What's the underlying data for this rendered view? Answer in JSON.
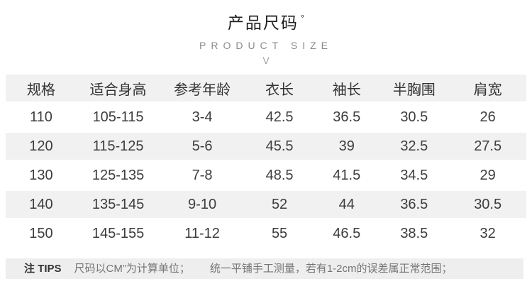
{
  "header": {
    "title": "产品尺码",
    "degree_mark": "°",
    "subtitle": "PRODUCT SIZE",
    "chevron": "V"
  },
  "table": {
    "columns": [
      "规格",
      "适合身高",
      "参考年龄",
      "衣长",
      "袖长",
      "半胸围",
      "肩宽"
    ],
    "rows": [
      [
        "110",
        "105-115",
        "3-4",
        "42.5",
        "36.5",
        "30.5",
        "26"
      ],
      [
        "120",
        "115-125",
        "5-6",
        "45.5",
        "39",
        "32.5",
        "27.5"
      ],
      [
        "130",
        "125-135",
        "7-8",
        "48.5",
        "41.5",
        "34.5",
        "29"
      ],
      [
        "140",
        "135-145",
        "9-10",
        "52",
        "44",
        "36.5",
        "30.5"
      ],
      [
        "150",
        "145-155",
        "11-12",
        "55",
        "46.5",
        "38.5",
        "32"
      ]
    ]
  },
  "tips": {
    "label": "注 TIPS",
    "segments": [
      "尺码以CM”为计算单位；",
      "统一平铺手工测量，若有1-2cm的误差属正常范围；"
    ]
  },
  "colors": {
    "stripe": "#f1f1f1",
    "text_primary": "#3d3d3d",
    "text_muted": "#8c8c8c"
  }
}
